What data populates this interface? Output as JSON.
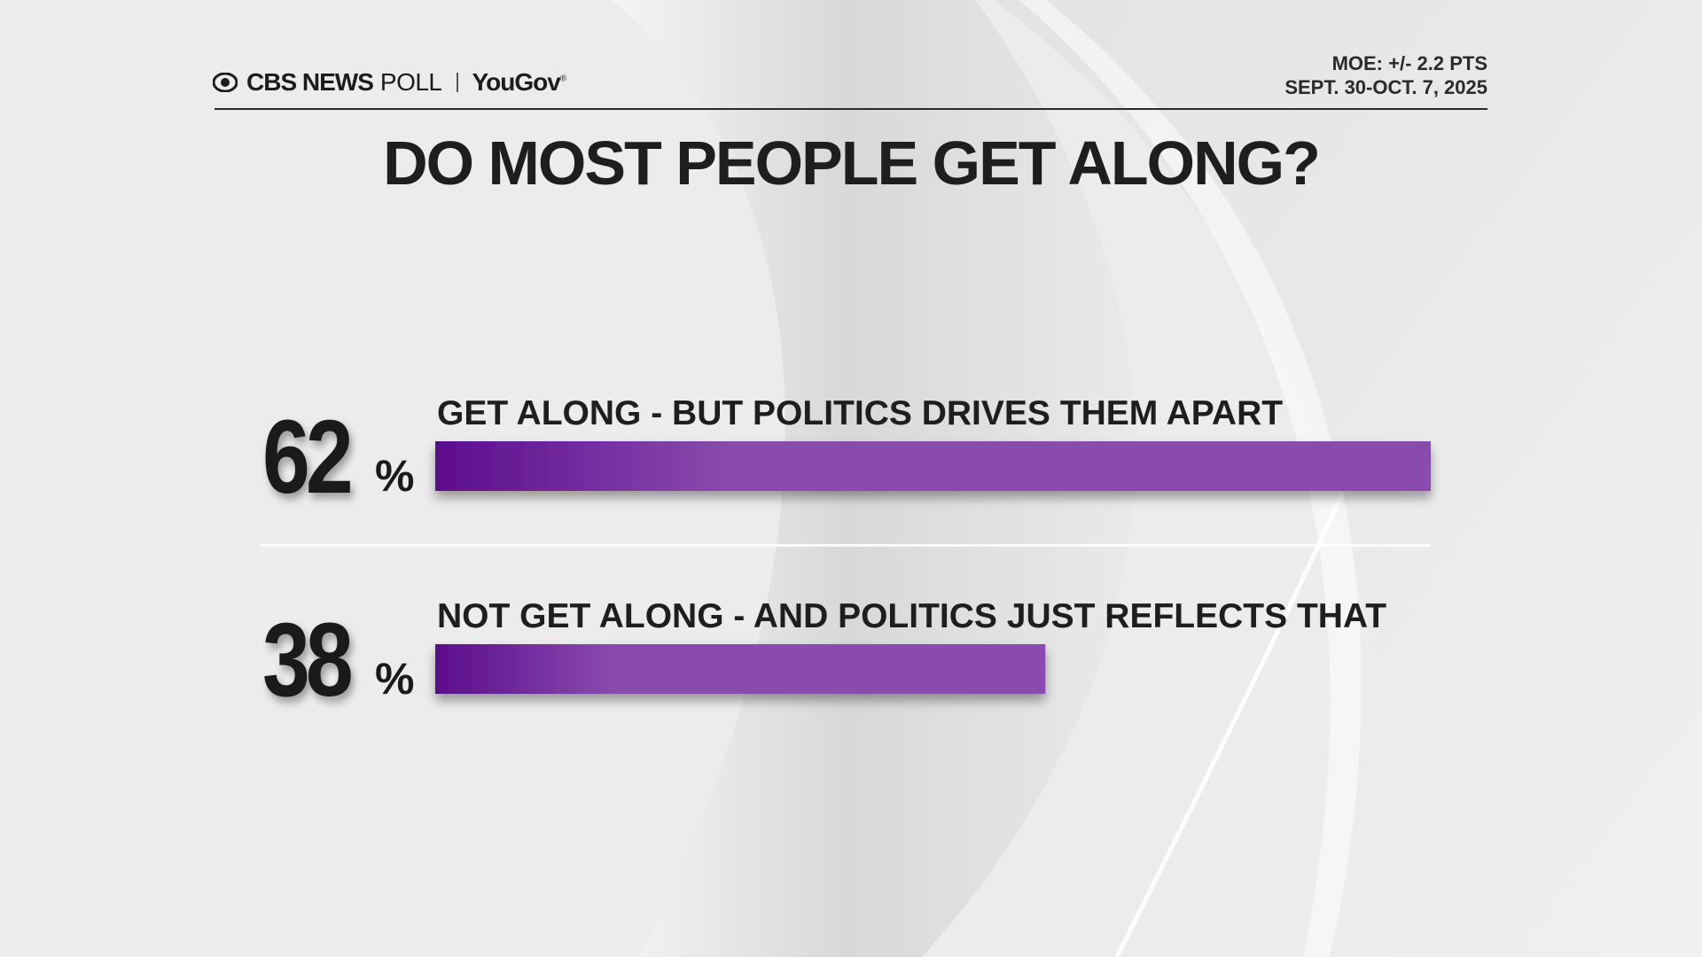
{
  "header": {
    "brand_cbs": "CBS NEWS",
    "brand_poll": "POLL",
    "brand_yougov": "YouGov",
    "brand_yougov_mark": "®",
    "moe": "MOE: +/- 2.2 PTS",
    "dates": "SEPT. 30-OCT. 7, 2025"
  },
  "title": "DO MOST PEOPLE GET ALONG?",
  "colors": {
    "bar_start": "#5c0d8c",
    "bar_end": "#8a4cb0",
    "text": "#1e1e1e",
    "background": "#ececec"
  },
  "chart_data": {
    "type": "bar",
    "orientation": "horizontal",
    "categories": [
      "GET ALONG - BUT POLITICS DRIVES THEM APART",
      "NOT GET ALONG - AND POLITICS JUST REFLECTS THAT"
    ],
    "values": [
      62,
      38
    ],
    "value_labels": [
      "62",
      "38"
    ],
    "unit": "%",
    "xlim": [
      0,
      62
    ]
  }
}
